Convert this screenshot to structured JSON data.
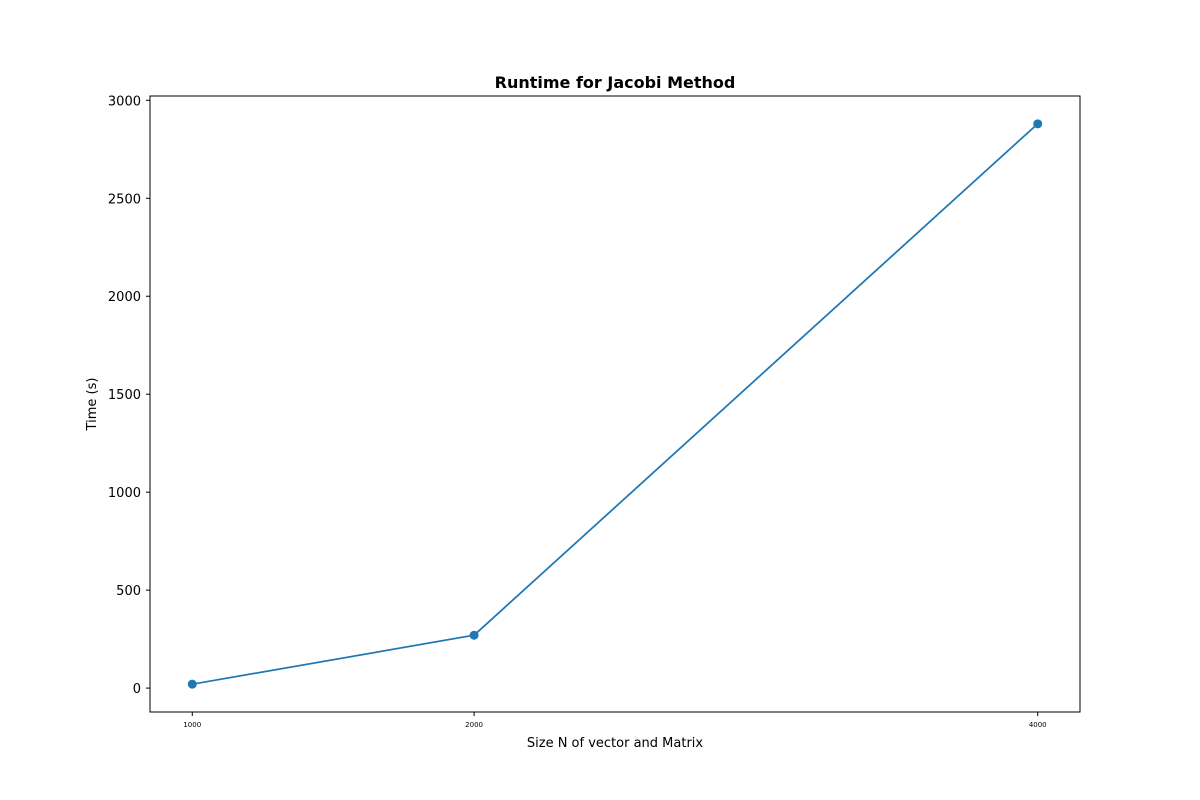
{
  "chart_data": {
    "type": "line",
    "title": "Runtime for Jacobi Method",
    "xlabel": "Size N of vector and Matrix",
    "ylabel": "Time (s)",
    "x": [
      1000,
      2000,
      4000
    ],
    "x_tick_labels": [
      "1000",
      "2000",
      "4000"
    ],
    "xlim": [
      850,
      4150
    ],
    "ylim": [
      -122,
      3022
    ],
    "y_ticks": [
      0,
      500,
      1000,
      1500,
      2000,
      2500,
      3000
    ],
    "y_tick_labels": [
      "0",
      "500",
      "1000",
      "1500",
      "2000",
      "2500",
      "3000"
    ],
    "series": [
      {
        "values": [
          20,
          270,
          2880
        ],
        "color": "#1f77b4",
        "marker": "circle"
      }
    ],
    "grid": false,
    "legend": "none"
  }
}
